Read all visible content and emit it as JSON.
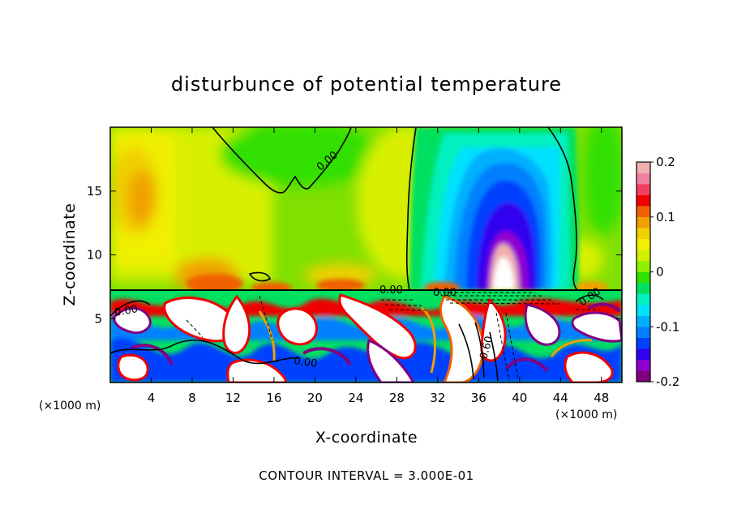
{
  "chart_data": {
    "type": "heatmap",
    "title": "disturbunce of potential temperature",
    "xlabel": "X-coordinate",
    "ylabel": "Z-coordinate",
    "x_unit_label": "(×1000 m)",
    "x_unit_label_right": "(×1000 m)",
    "xlim": [
      0,
      50
    ],
    "ylim": [
      0,
      20
    ],
    "x_ticks": [
      4,
      8,
      12,
      16,
      20,
      24,
      28,
      32,
      36,
      40,
      44,
      48
    ],
    "y_ticks": [
      5,
      10,
      15
    ],
    "colorbar": {
      "vmin": -0.2,
      "vmax": 0.2,
      "tick_values": [
        0.2,
        0.1,
        0,
        -0.1,
        -0.2
      ],
      "tick_labels": [
        "0.2",
        "0.1",
        "0",
        "-0.1",
        "-0.2"
      ],
      "colors": [
        "#800080",
        "#9000d0",
        "#3000f0",
        "#0040ff",
        "#0080ff",
        "#00b0ff",
        "#00e0ff",
        "#00f0c0",
        "#00e060",
        "#30e000",
        "#90f000",
        "#d0f000",
        "#f0f000",
        "#f0d000",
        "#f0a000",
        "#f06000",
        "#f00000",
        "#f04060",
        "#f080a0",
        "#f0b0b0"
      ]
    },
    "contour_interval_text": "CONTOUR INTERVAL = 3.000E-01",
    "contour_labels": [
      "0.00",
      "0.00",
      "0.00",
      "0.00",
      "0.00",
      "0.60",
      "0.00"
    ],
    "grid": false,
    "legend": "right"
  }
}
